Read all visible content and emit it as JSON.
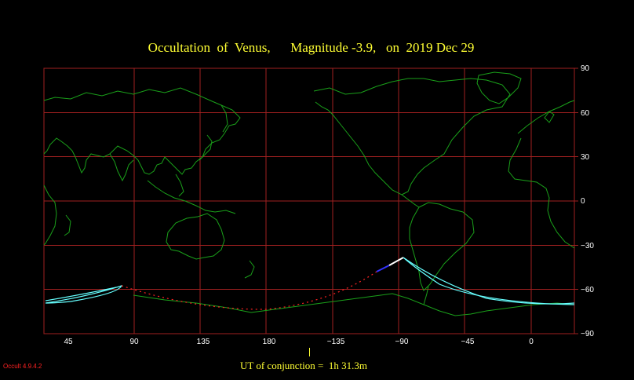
{
  "title": "Occultation  of  Venus,      Magnitude -3.9,   on  2019 Dec 29",
  "y_axis_labels": [
    "90",
    "60",
    "30",
    "0",
    "−30",
    "−60",
    "−90"
  ],
  "x_axis_labels": [
    "45",
    "90",
    "135",
    "180",
    "−135",
    "−90",
    "−45",
    "0"
  ],
  "ut_label": "UT of conjunction =  1h 31.3m",
  "version": "Occult 4.9.4.2",
  "colors": {
    "title": "#ffff33",
    "grid": "#a02020",
    "coastline": "#1aa01a",
    "limit_curve": "#66ffff",
    "daylight_track": "#ffffff",
    "twilight_track": "#3333ff",
    "below_horizon_track": "#ff2222",
    "version": "#ff2222"
  }
}
